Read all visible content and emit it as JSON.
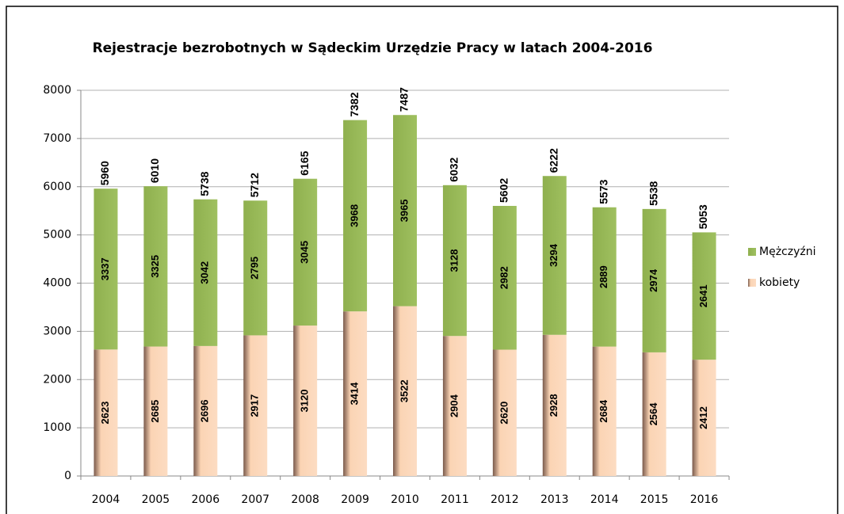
{
  "chart_data": {
    "type": "stacked_bar",
    "title": "Rejestracje bezrobotnych w Sądeckim Urzędzie Pracy w latach 2004-2016",
    "categories": [
      "2004",
      "2005",
      "2006",
      "2007",
      "2008",
      "2009",
      "2010",
      "2011",
      "2012",
      "2013",
      "2014",
      "2015",
      "2016"
    ],
    "series": [
      {
        "name": "kobiety",
        "color": "#fbd4b4",
        "values": [
          2623,
          2685,
          2696,
          2917,
          3120,
          3414,
          3522,
          2904,
          2620,
          2928,
          2684,
          2564,
          2412
        ]
      },
      {
        "name": "Mężczyźni",
        "color": "#9bbb59",
        "values": [
          3337,
          3325,
          3042,
          2795,
          3045,
          3968,
          3965,
          3128,
          2982,
          3294,
          2889,
          2974,
          2641
        ]
      }
    ],
    "totals": [
      5960,
      6010,
      5738,
      5712,
      6165,
      7382,
      7487,
      6032,
      5602,
      6222,
      5573,
      5538,
      5053
    ],
    "ylim": [
      0,
      8000
    ],
    "yticks": [
      0,
      1000,
      2000,
      3000,
      4000,
      5000,
      6000,
      7000,
      8000
    ],
    "grid": true,
    "legend": "right"
  }
}
